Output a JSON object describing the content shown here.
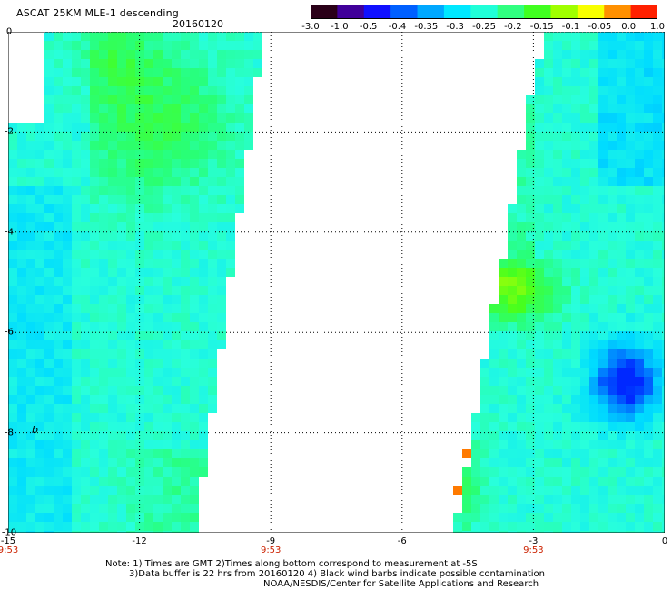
{
  "header": {
    "title": "ASCAT 25KM MLE-1 descending",
    "date": "20160120"
  },
  "colorbar": {
    "labels": [
      "-3.0",
      "-1.0",
      "-0.5",
      "-0.4",
      "-0.35",
      "-0.3",
      "-0.25",
      "-0.2",
      "-0.15",
      "-0.1",
      "-0.05",
      "0.0",
      "1.0"
    ],
    "colors": [
      "#2a0018",
      "#40009a",
      "#1010ff",
      "#0060ff",
      "#00a8ff",
      "#00e8ff",
      "#20ffd8",
      "#30ff80",
      "#40ff20",
      "#a0ff00",
      "#f8ff00",
      "#ff9000",
      "#ff2000"
    ]
  },
  "axes": {
    "x_ticks": [
      "-15",
      "-12",
      "-9",
      "-6",
      "-3",
      "0"
    ],
    "y_ticks": [
      "0",
      "-2",
      "-4",
      "-6",
      "-8",
      "-10"
    ],
    "time_labels": [
      {
        "lon": -15,
        "text": "9:53"
      },
      {
        "lon": -9,
        "text": "9:53"
      },
      {
        "lon": -3,
        "text": "9:53"
      }
    ],
    "lon_range": [
      -15,
      0
    ],
    "lat_range": [
      -10,
      0
    ]
  },
  "annotation": "b",
  "notes": {
    "line1": "Note: 1) Times are GMT 2)Times along bottom correspond to measurement at -5S",
    "line2": "3)Data buffer is 22 hrs from 20160120 4) Black wind barbs indicate possible contamination",
    "line3": "NOAA/NESDIS/Center for Satellite Applications and Research"
  }
}
